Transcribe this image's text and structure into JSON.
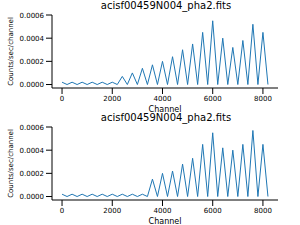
{
  "chart_data": [
    {
      "type": "line",
      "title": "acisf00459N004_pha2.fits",
      "x_label": "Channel",
      "y_label": "Counts/sec/channel",
      "color": "#1f77b4",
      "x": [
        0,
        200,
        400,
        600,
        800,
        1000,
        1200,
        1400,
        1600,
        1800,
        2000,
        2200,
        2400,
        2600,
        2800,
        3000,
        3200,
        3400,
        3600,
        3800,
        4000,
        4200,
        4400,
        4600,
        4800,
        5000,
        5200,
        5400,
        5600,
        5800,
        6000,
        6200,
        6400,
        6600,
        6800,
        7000,
        7200,
        7400,
        7600,
        7800,
        8000,
        8200
      ],
      "values": [
        2e-05,
        0,
        2e-05,
        0,
        2e-05,
        0,
        2e-05,
        0,
        2e-05,
        0,
        2e-05,
        0,
        7e-05,
        0,
        0.0001,
        0,
        0.00014,
        0,
        0.00017,
        0,
        0.0002,
        0,
        0.00024,
        0,
        0.0003,
        0,
        0.00035,
        0,
        0.00045,
        0,
        0.00055,
        0,
        0.0004,
        0,
        0.00032,
        0,
        0.00038,
        0,
        0.00052,
        0,
        0.00045,
        0
      ],
      "xlim": [
        -400,
        8600
      ],
      "xticks": [
        0,
        2000,
        4000,
        6000,
        8000
      ],
      "ylim": [
        -3e-05,
        0.0006
      ],
      "yticks": [
        {
          "value": 0,
          "label": "0.0000"
        },
        {
          "value": 0.0002,
          "label": "0.0002"
        },
        {
          "value": 0.0004,
          "label": "0.0004"
        },
        {
          "value": 0.0006,
          "label": "0.0006"
        }
      ]
    },
    {
      "type": "line",
      "title": "acisf00459N004_pha2.fits",
      "x_label": "Channel",
      "y_label": "Counts/sec/channel",
      "color": "#1f77b4",
      "x": [
        0,
        200,
        400,
        600,
        800,
        1000,
        1200,
        1400,
        1600,
        1800,
        2000,
        2200,
        2400,
        2600,
        2800,
        3000,
        3200,
        3400,
        3600,
        3800,
        4000,
        4200,
        4400,
        4600,
        4800,
        5000,
        5200,
        5400,
        5600,
        5800,
        6000,
        6200,
        6400,
        6600,
        6800,
        7000,
        7200,
        7400,
        7600,
        7800,
        8000,
        8200
      ],
      "values": [
        2e-05,
        0,
        2e-05,
        0,
        2e-05,
        0,
        2e-05,
        0,
        2e-05,
        0,
        2e-05,
        0,
        2e-05,
        0,
        2e-05,
        0,
        2e-05,
        0,
        0.00015,
        0,
        0.0002,
        0,
        0.00022,
        0,
        0.00028,
        0,
        0.00033,
        0,
        0.00045,
        0,
        0.00055,
        0,
        0.00042,
        0,
        0.0004,
        0,
        0.00045,
        0,
        0.00057,
        0,
        0.00045,
        0
      ],
      "xlim": [
        -400,
        8600
      ],
      "xticks": [
        0,
        2000,
        4000,
        6000,
        8000
      ],
      "ylim": [
        -3e-05,
        0.0006
      ],
      "yticks": [
        {
          "value": 0,
          "label": "0.0000"
        },
        {
          "value": 0.0002,
          "label": "0.0002"
        },
        {
          "value": 0.0004,
          "label": "0.0004"
        },
        {
          "value": 0.0006,
          "label": "0.0006"
        }
      ]
    }
  ]
}
